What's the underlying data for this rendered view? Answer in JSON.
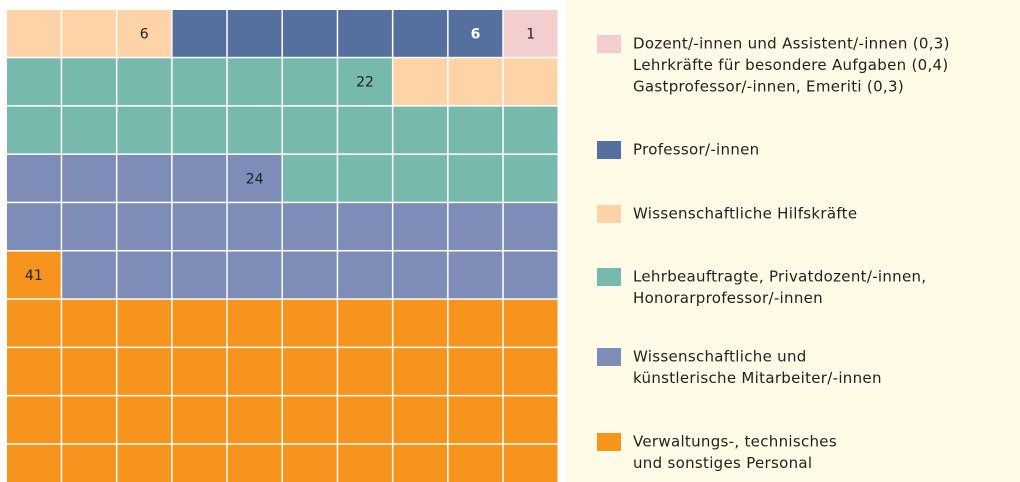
{
  "chart_data": {
    "type": "waffle",
    "rows": 10,
    "cols": 10,
    "series": [
      {
        "name": [
          "Dozent/-innen und Assistent/-innen (0,3)",
          "Lehrkräfte für besondere Aufgaben (0,4)",
          "Gastprofessor/-innen, Emeriti (0,3)"
        ],
        "color": "#f2cece",
        "value": 1
      },
      {
        "name": [
          "Professor/-innen"
        ],
        "color": "#55709f",
        "value": 6
      },
      {
        "name": [
          "Wissenschaftliche Hilfskräfte"
        ],
        "color": "#fdd3a7",
        "value": 6
      },
      {
        "name": [
          "Lehrbeauftragte, Privatdozent/-innen,",
          "Honorarprofessor/-innen"
        ],
        "color": "#77b9ad",
        "value": 22
      },
      {
        "name": [
          "Wissenschaftliche und",
          "künstlerische Mitarbeiter/-innen"
        ],
        "color": "#7d8db8",
        "value": 24
      },
      {
        "name": [
          "Verwaltungs-, technisches",
          "und sonstiges Personal"
        ],
        "color": "#f7941e",
        "value": 41
      }
    ]
  }
}
